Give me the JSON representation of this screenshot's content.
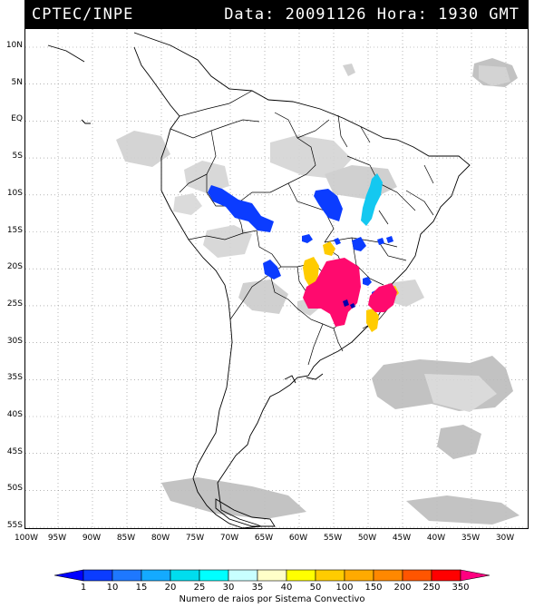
{
  "header": {
    "source": "CPTEC/INPE",
    "datetime": "Data: 20091126 Hora: 1930 GMT"
  },
  "axes": {
    "latitude": [
      "10N",
      "5N",
      "EQ",
      "5S",
      "10S",
      "15S",
      "20S",
      "25S",
      "30S",
      "35S",
      "40S",
      "45S",
      "50S",
      "55S"
    ],
    "longitude": [
      "100W",
      "95W",
      "90W",
      "85W",
      "80W",
      "75W",
      "70W",
      "65W",
      "60W",
      "55W",
      "50W",
      "45W",
      "40W",
      "35W",
      "30W"
    ]
  },
  "colorbar": {
    "title": "Numero de raios por Sistema Convectivo",
    "labels": [
      "1",
      "10",
      "15",
      "20",
      "25",
      "30",
      "35",
      "40",
      "50",
      "100",
      "150",
      "200",
      "250",
      "350"
    ],
    "colors": [
      "#0000ff",
      "#0b3cff",
      "#1e78ff",
      "#14aaff",
      "#00ddee",
      "#00ffff",
      "#c8ffff",
      "#ffffc8",
      "#ffff00",
      "#ffcc00",
      "#ffaa00",
      "#ff8800",
      "#ff5500",
      "#ff0000",
      "#ff0080"
    ]
  }
}
